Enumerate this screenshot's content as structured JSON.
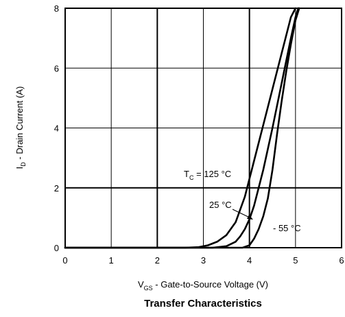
{
  "chart_data": {
    "type": "line",
    "title": "Transfer Characteristics",
    "xlabel": {
      "prefix": "V",
      "subscript": "GS",
      "text": " - Gate-to-Source Voltage (V)"
    },
    "ylabel": {
      "prefix": "I",
      "subscript": "D",
      "text": " - Drain Current (A)"
    },
    "xlim": [
      0,
      6
    ],
    "ylim": [
      0,
      8
    ],
    "xticks": [
      "0",
      "1",
      "2",
      "3",
      "4",
      "5",
      "6"
    ],
    "yticks": [
      "0",
      "2",
      "4",
      "6",
      "8"
    ],
    "grid": true,
    "series": [
      {
        "label_prefix": "T",
        "label_subscript": "C",
        "label_text": " = 125 °C",
        "x": [
          0.0,
          2.6,
          2.9,
          3.1,
          3.3,
          3.5,
          3.7,
          3.9,
          4.1,
          4.3,
          4.5,
          4.7,
          4.9,
          5.0
        ],
        "y": [
          0.0,
          0.0,
          0.02,
          0.08,
          0.2,
          0.42,
          0.85,
          1.7,
          2.9,
          4.1,
          5.3,
          6.5,
          7.7,
          8.0
        ]
      },
      {
        "label_text": "25 °C",
        "x": [
          0.0,
          3.2,
          3.5,
          3.7,
          3.8,
          3.9,
          4.0,
          4.1,
          4.3,
          4.5,
          4.7,
          4.9,
          5.0,
          5.06
        ],
        "y": [
          0.0,
          0.0,
          0.05,
          0.2,
          0.38,
          0.62,
          0.95,
          1.4,
          2.6,
          4.0,
          5.5,
          7.0,
          7.7,
          8.0
        ]
      },
      {
        "label_text": "- 55 °C",
        "x": [
          0.0,
          3.85,
          4.0,
          4.1,
          4.2,
          4.3,
          4.4,
          4.5,
          4.6,
          4.7,
          4.8,
          4.9,
          5.0,
          5.08
        ],
        "y": [
          0.0,
          0.0,
          0.08,
          0.3,
          0.62,
          1.05,
          1.65,
          2.6,
          3.8,
          4.9,
          5.9,
          6.8,
          7.6,
          8.0
        ]
      }
    ]
  }
}
